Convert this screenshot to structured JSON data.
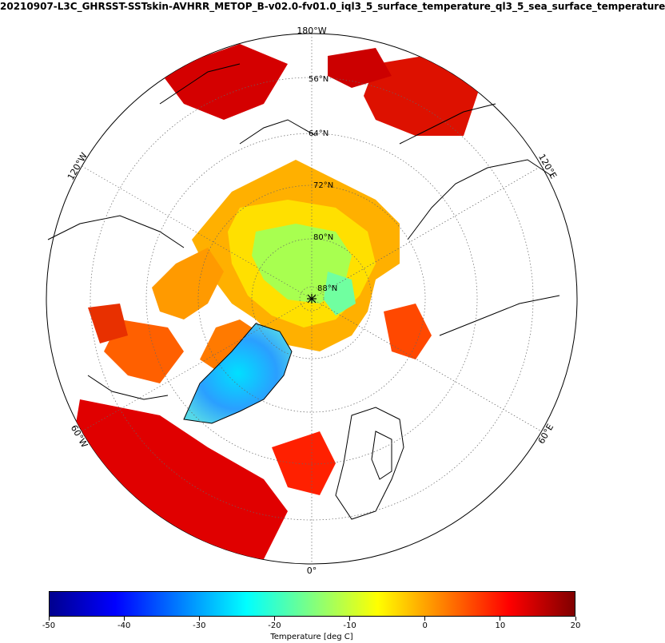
{
  "title": "20210907-L3C_GHRSST-SSTskin-AVHRR_METOP_B-v02.0-fv01.0_iql3_5_surface_temperature_ql3_5_sea_surface_temperature",
  "map": {
    "projection": "north-polar-stereographic",
    "longitude_labels": [
      {
        "id": "lon-180w",
        "text": "180°W"
      },
      {
        "id": "lon-120w",
        "text": "120°W"
      },
      {
        "id": "lon-120e",
        "text": "120°E"
      },
      {
        "id": "lon-60w",
        "text": "60°W"
      },
      {
        "id": "lon-60e",
        "text": "60°E"
      },
      {
        "id": "lon-0",
        "text": "0°"
      }
    ],
    "latitude_labels": [
      {
        "id": "lat-56n",
        "text": "56°N"
      },
      {
        "id": "lat-64n",
        "text": "64°N"
      },
      {
        "id": "lat-72n",
        "text": "72°N"
      },
      {
        "id": "lat-80n",
        "text": "80°N"
      },
      {
        "id": "lat-88n",
        "text": "88°N"
      }
    ]
  },
  "colorbar": {
    "label": "Temperature [deg C]",
    "min": -50,
    "max": 20,
    "ticks": [
      "-50",
      "-40",
      "-30",
      "-20",
      "-10",
      "0",
      "10",
      "20"
    ],
    "colormap": "jet",
    "colors": [
      "#00008f",
      "#0000ff",
      "#0080ff",
      "#00ffff",
      "#80ff80",
      "#ffff00",
      "#ff8000",
      "#ff0000",
      "#800000"
    ]
  }
}
